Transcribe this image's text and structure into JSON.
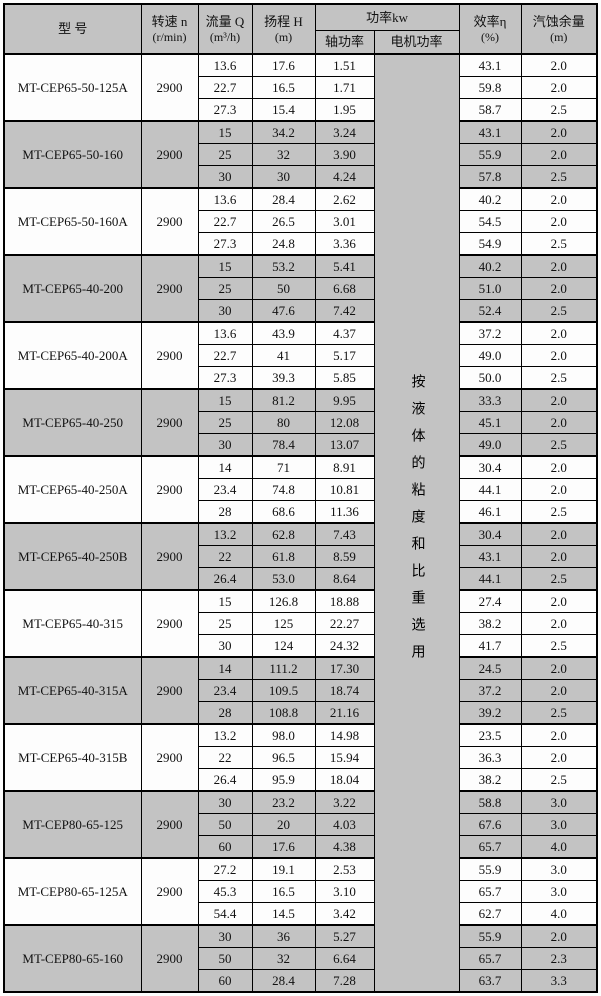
{
  "header": {
    "model": "型 号",
    "speed": [
      "转速 n",
      "(r/min)"
    ],
    "flow": [
      "流量 Q",
      "(m³/h)"
    ],
    "head": [
      "扬程 H",
      "(m)"
    ],
    "power_group": "功率kw",
    "shaft": "轴功率",
    "motor": "电机功率",
    "efficiency": [
      "效率η",
      "(%)"
    ],
    "npsh": [
      "汽蚀余量",
      "(m)"
    ]
  },
  "motor_power_note": "按液体的粘度和比重选用",
  "colors": {
    "band_gray": "#c3c3c3",
    "border": "#000000",
    "background": "#ffffff"
  },
  "groups": [
    {
      "model": "MT-CEP65-50-125A",
      "speed": "2900",
      "rows": [
        [
          "13.6",
          "17.6",
          "1.51",
          "43.1",
          "2.0"
        ],
        [
          "22.7",
          "16.5",
          "1.71",
          "59.8",
          "2.0"
        ],
        [
          "27.3",
          "15.4",
          "1.95",
          "58.7",
          "2.5"
        ]
      ]
    },
    {
      "model": "MT-CEP65-50-160",
      "speed": "2900",
      "rows": [
        [
          "15",
          "34.2",
          "3.24",
          "43.1",
          "2.0"
        ],
        [
          "25",
          "32",
          "3.90",
          "55.9",
          "2.0"
        ],
        [
          "30",
          "30",
          "4.24",
          "57.8",
          "2.5"
        ]
      ]
    },
    {
      "model": "MT-CEP65-50-160A",
      "speed": "2900",
      "rows": [
        [
          "13.6",
          "28.4",
          "2.62",
          "40.2",
          "2.0"
        ],
        [
          "22.7",
          "26.5",
          "3.01",
          "54.5",
          "2.0"
        ],
        [
          "27.3",
          "24.8",
          "3.36",
          "54.9",
          "2.5"
        ]
      ]
    },
    {
      "model": "MT-CEP65-40-200",
      "speed": "2900",
      "rows": [
        [
          "15",
          "53.2",
          "5.41",
          "40.2",
          "2.0"
        ],
        [
          "25",
          "50",
          "6.68",
          "51.0",
          "2.0"
        ],
        [
          "30",
          "47.6",
          "7.42",
          "52.4",
          "2.5"
        ]
      ]
    },
    {
      "model": "MT-CEP65-40-200A",
      "speed": "2900",
      "rows": [
        [
          "13.6",
          "43.9",
          "4.37",
          "37.2",
          "2.0"
        ],
        [
          "22.7",
          "41",
          "5.17",
          "49.0",
          "2.0"
        ],
        [
          "27.3",
          "39.3",
          "5.85",
          "50.0",
          "2.5"
        ]
      ]
    },
    {
      "model": "MT-CEP65-40-250",
      "speed": "2900",
      "rows": [
        [
          "15",
          "81.2",
          "9.95",
          "33.3",
          "2.0"
        ],
        [
          "25",
          "80",
          "12.08",
          "45.1",
          "2.0"
        ],
        [
          "30",
          "78.4",
          "13.07",
          "49.0",
          "2.5"
        ]
      ]
    },
    {
      "model": "MT-CEP65-40-250A",
      "speed": "2900",
      "rows": [
        [
          "14",
          "71",
          "8.91",
          "30.4",
          "2.0"
        ],
        [
          "23.4",
          "74.8",
          "10.81",
          "44.1",
          "2.0"
        ],
        [
          "28",
          "68.6",
          "11.36",
          "46.1",
          "2.5"
        ]
      ]
    },
    {
      "model": "MT-CEP65-40-250B",
      "speed": "2900",
      "rows": [
        [
          "13.2",
          "62.8",
          "7.43",
          "30.4",
          "2.0"
        ],
        [
          "22",
          "61.8",
          "8.59",
          "43.1",
          "2.0"
        ],
        [
          "26.4",
          "53.0",
          "8.64",
          "44.1",
          "2.5"
        ]
      ]
    },
    {
      "model": "MT-CEP65-40-315",
      "speed": "2900",
      "rows": [
        [
          "15",
          "126.8",
          "18.88",
          "27.4",
          "2.0"
        ],
        [
          "25",
          "125",
          "22.27",
          "38.2",
          "2.0"
        ],
        [
          "30",
          "124",
          "24.32",
          "41.7",
          "2.5"
        ]
      ]
    },
    {
      "model": "MT-CEP65-40-315A",
      "speed": "2900",
      "rows": [
        [
          "14",
          "111.2",
          "17.30",
          "24.5",
          "2.0"
        ],
        [
          "23.4",
          "109.5",
          "18.74",
          "37.2",
          "2.0"
        ],
        [
          "28",
          "108.8",
          "21.16",
          "39.2",
          "2.5"
        ]
      ]
    },
    {
      "model": "MT-CEP65-40-315B",
      "speed": "2900",
      "rows": [
        [
          "13.2",
          "98.0",
          "14.98",
          "23.5",
          "2.0"
        ],
        [
          "22",
          "96.5",
          "15.94",
          "36.3",
          "2.0"
        ],
        [
          "26.4",
          "95.9",
          "18.04",
          "38.2",
          "2.5"
        ]
      ]
    },
    {
      "model": "MT-CEP80-65-125",
      "speed": "2900",
      "rows": [
        [
          "30",
          "23.2",
          "3.22",
          "58.8",
          "3.0"
        ],
        [
          "50",
          "20",
          "4.03",
          "67.6",
          "3.0"
        ],
        [
          "60",
          "17.6",
          "4.38",
          "65.7",
          "4.0"
        ]
      ]
    },
    {
      "model": "MT-CEP80-65-125A",
      "speed": "2900",
      "rows": [
        [
          "27.2",
          "19.1",
          "2.53",
          "55.9",
          "3.0"
        ],
        [
          "45.3",
          "16.5",
          "3.10",
          "65.7",
          "3.0"
        ],
        [
          "54.4",
          "14.5",
          "3.42",
          "62.7",
          "4.0"
        ]
      ]
    },
    {
      "model": "MT-CEP80-65-160",
      "speed": "2900",
      "rows": [
        [
          "30",
          "36",
          "5.27",
          "55.9",
          "2.0"
        ],
        [
          "50",
          "32",
          "6.64",
          "65.7",
          "2.3"
        ],
        [
          "60",
          "28.4",
          "7.28",
          "63.7",
          "3.3"
        ]
      ]
    }
  ]
}
